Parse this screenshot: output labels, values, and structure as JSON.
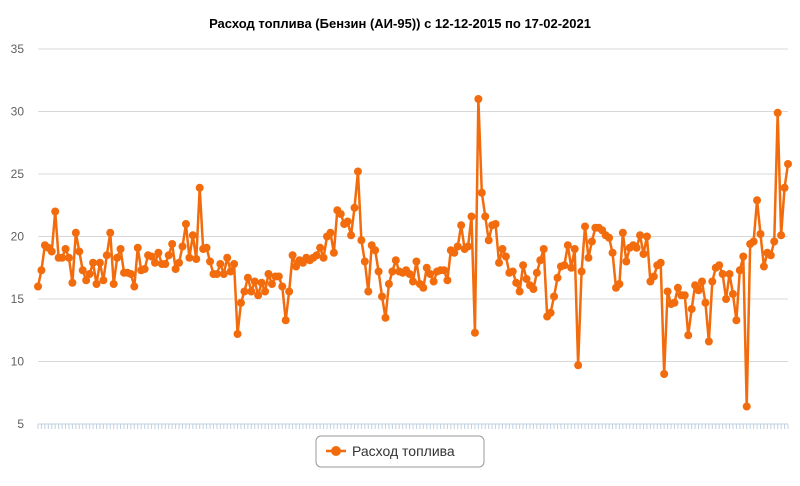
{
  "chart_data": {
    "type": "line",
    "title": "Расход топлива (Бензин (АИ-95)) с 12-12-2015 по 17-02-2021",
    "ylim": [
      5,
      35
    ],
    "yticks": [
      5,
      10,
      15,
      20,
      25,
      30,
      35
    ],
    "grid": true,
    "legend_position": "bottom-center",
    "colors": {
      "series": "#f26c0d",
      "grid": "#d8d8d8",
      "axis_text": "#606060",
      "legend_border": "#999999"
    },
    "series": [
      {
        "name": "Расход топлива",
        "values": [
          16.0,
          17.3,
          19.3,
          19.1,
          18.8,
          22.0,
          18.3,
          18.3,
          19.0,
          18.3,
          16.3,
          20.3,
          18.8,
          17.3,
          16.5,
          17.0,
          17.9,
          16.2,
          17.9,
          16.5,
          18.5,
          20.3,
          16.2,
          18.3,
          19.0,
          17.1,
          17.1,
          17.0,
          16.0,
          19.1,
          17.3,
          17.4,
          18.5,
          18.4,
          17.9,
          18.7,
          17.8,
          17.8,
          18.5,
          19.4,
          17.4,
          17.9,
          19.2,
          21.0,
          18.3,
          20.1,
          18.2,
          23.9,
          19.0,
          19.1,
          18.0,
          17.0,
          17.0,
          17.8,
          17.0,
          18.3,
          17.2,
          17.8,
          12.2,
          14.7,
          15.6,
          16.7,
          15.6,
          16.4,
          15.3,
          16.3,
          15.6,
          17.0,
          16.2,
          16.8,
          16.8,
          16.0,
          13.3,
          15.6,
          18.5,
          17.6,
          18.1,
          17.9,
          18.3,
          18.1,
          18.3,
          18.5,
          19.1,
          18.3,
          20.0,
          20.3,
          18.7,
          22.1,
          21.8,
          21.0,
          21.2,
          20.1,
          22.3,
          25.2,
          19.7,
          18.0,
          15.6,
          19.3,
          18.9,
          17.2,
          15.2,
          13.5,
          16.2,
          17.2,
          18.1,
          17.2,
          17.1,
          17.3,
          17.0,
          16.4,
          18.0,
          16.2,
          15.9,
          17.5,
          17.0,
          16.4,
          17.2,
          17.3,
          17.3,
          16.5,
          18.9,
          18.7,
          19.2,
          20.9,
          19.0,
          19.2,
          21.6,
          12.3,
          31.0,
          23.5,
          21.6,
          19.7,
          20.9,
          21.0,
          17.9,
          19.0,
          18.4,
          17.1,
          17.2,
          16.3,
          15.6,
          17.7,
          16.6,
          16.1,
          15.8,
          17.1,
          18.1,
          19.0,
          13.6,
          13.9,
          15.2,
          16.7,
          17.6,
          17.7,
          19.3,
          17.5,
          19.0,
          9.7,
          17.2,
          20.8,
          18.3,
          19.6,
          20.7,
          20.7,
          20.5,
          20.1,
          19.9,
          18.7,
          15.9,
          16.2,
          20.3,
          18.0,
          19.1,
          19.3,
          19.1,
          20.1,
          18.6,
          20.0,
          16.4,
          16.8,
          17.7,
          17.9,
          9.0,
          15.6,
          14.6,
          14.7,
          15.9,
          15.3,
          15.3,
          12.1,
          14.2,
          16.1,
          15.7,
          16.4,
          14.7,
          11.6,
          16.4,
          17.5,
          17.7,
          17.0,
          15.0,
          17.0,
          15.4,
          13.3,
          17.3,
          18.4,
          6.4,
          19.4,
          19.6,
          22.9,
          20.2,
          17.6,
          18.7,
          18.5,
          19.6,
          29.9,
          20.1,
          23.9,
          25.8
        ]
      }
    ]
  }
}
